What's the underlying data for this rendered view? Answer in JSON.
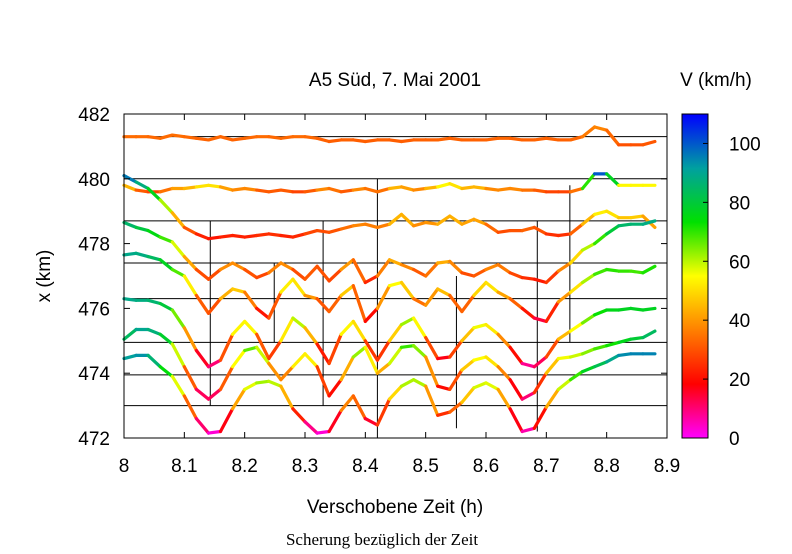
{
  "chart_data": {
    "type": "line",
    "title": "A5 Süd, 7. Mai 2001",
    "xlabel": "Verschobene Zeit (h)",
    "ylabel": "x (km)",
    "caption": "Scherung bezüglich der Zeit",
    "xlim": [
      8,
      8.9
    ],
    "ylim": [
      472,
      482
    ],
    "xticks": [
      "8",
      "8.1",
      "8.2",
      "8.3",
      "8.4",
      "8.5",
      "8.6",
      "8.7",
      "8.8",
      "8.9"
    ],
    "yticks": [
      "472",
      "474",
      "476",
      "478",
      "480",
      "482"
    ],
    "colorbar": {
      "label": "V (km/h)",
      "ticks": [
        "0",
        "20",
        "40",
        "60",
        "80",
        "100"
      ],
      "range": [
        0,
        110
      ],
      "colors": [
        "#ff00ff",
        "#ff0000",
        "#ff8000",
        "#ffff00",
        "#00e000",
        "#00a0a0",
        "#0000ff"
      ]
    },
    "detector_positions_km": [
      481.3,
      480.0,
      478.7,
      477.4,
      476.3,
      474.95,
      473.95,
      473.0
    ],
    "trough_times_h": [
      8.143,
      8.249,
      8.33,
      8.42,
      8.551,
      8.685,
      8.739
    ],
    "series": [
      {
        "base": 481.3,
        "vmax": 38,
        "vmin": 30,
        "x": [
          8.0,
          8.02,
          8.04,
          8.06,
          8.08,
          8.1,
          8.12,
          8.14,
          8.16,
          8.18,
          8.2,
          8.22,
          8.24,
          8.26,
          8.28,
          8.3,
          8.32,
          8.34,
          8.36,
          8.38,
          8.4,
          8.42,
          8.44,
          8.46,
          8.48,
          8.5,
          8.52,
          8.54,
          8.56,
          8.58,
          8.6,
          8.62,
          8.64,
          8.66,
          8.68,
          8.7,
          8.72,
          8.74,
          8.76,
          8.78,
          8.8,
          8.82,
          8.84,
          8.86,
          8.88
        ],
        "y": [
          481.3,
          481.3,
          481.3,
          481.25,
          481.35,
          481.3,
          481.25,
          481.2,
          481.3,
          481.2,
          481.25,
          481.3,
          481.3,
          481.25,
          481.3,
          481.3,
          481.25,
          481.15,
          481.2,
          481.2,
          481.15,
          481.2,
          481.2,
          481.15,
          481.2,
          481.2,
          481.2,
          481.25,
          481.2,
          481.2,
          481.2,
          481.25,
          481.25,
          481.2,
          481.2,
          481.25,
          481.2,
          481.2,
          481.3,
          481.6,
          481.5,
          481.05,
          481.05,
          481.05,
          481.15
        ]
      },
      {
        "base": 480.0,
        "vmax": 100,
        "vmin": 28,
        "x": [
          8.0,
          8.02,
          8.04,
          8.06,
          8.08,
          8.1,
          8.12,
          8.14,
          8.16,
          8.18,
          8.2,
          8.22,
          8.24,
          8.26,
          8.28,
          8.3,
          8.32,
          8.34,
          8.36,
          8.38,
          8.4,
          8.42,
          8.44,
          8.46,
          8.48,
          8.5,
          8.52,
          8.54,
          8.56,
          8.58,
          8.6,
          8.62,
          8.64,
          8.66,
          8.68,
          8.7,
          8.72,
          8.74,
          8.76,
          8.78,
          8.8,
          8.82,
          8.84,
          8.86,
          8.88
        ],
        "y": [
          479.8,
          479.65,
          479.6,
          479.6,
          479.7,
          479.7,
          479.75,
          479.8,
          479.75,
          479.65,
          479.7,
          479.65,
          479.6,
          479.65,
          479.6,
          479.6,
          479.65,
          479.7,
          479.6,
          479.65,
          479.7,
          479.6,
          479.7,
          479.75,
          479.65,
          479.7,
          479.75,
          479.85,
          479.7,
          479.75,
          479.7,
          479.65,
          479.7,
          479.65,
          479.65,
          479.6,
          479.6,
          479.6,
          479.7,
          480.15,
          480.15,
          479.8,
          479.8,
          479.8,
          479.8
        ]
      },
      {
        "base": 478.7,
        "vmax": 100,
        "vmin": 20,
        "x": [
          8.0,
          8.02,
          8.04,
          8.06,
          8.08,
          8.1,
          8.12,
          8.14,
          8.16,
          8.18,
          8.2,
          8.22,
          8.24,
          8.26,
          8.28,
          8.3,
          8.32,
          8.34,
          8.36,
          8.38,
          8.4,
          8.42,
          8.44,
          8.46,
          8.48,
          8.5,
          8.52,
          8.54,
          8.56,
          8.58,
          8.6,
          8.62,
          8.64,
          8.66,
          8.68,
          8.7,
          8.72,
          8.74,
          8.76,
          8.78,
          8.8,
          8.82,
          8.84,
          8.86,
          8.88
        ],
        "y": [
          480.1,
          479.9,
          479.7,
          479.35,
          478.95,
          478.5,
          478.3,
          478.15,
          478.2,
          478.25,
          478.2,
          478.25,
          478.3,
          478.25,
          478.2,
          478.3,
          478.4,
          478.35,
          478.45,
          478.55,
          478.6,
          478.5,
          478.6,
          478.9,
          478.55,
          478.65,
          478.6,
          478.85,
          478.6,
          478.75,
          478.6,
          478.35,
          478.4,
          478.4,
          478.5,
          478.3,
          478.25,
          478.3,
          478.6,
          478.9,
          479.0,
          478.8,
          478.8,
          478.85,
          478.5
        ]
      },
      {
        "base": 477.4,
        "vmax": 90,
        "vmin": 20,
        "x": [
          8.0,
          8.02,
          8.04,
          8.06,
          8.08,
          8.1,
          8.12,
          8.14,
          8.16,
          8.18,
          8.2,
          8.22,
          8.24,
          8.26,
          8.28,
          8.3,
          8.32,
          8.34,
          8.36,
          8.38,
          8.4,
          8.42,
          8.44,
          8.46,
          8.48,
          8.5,
          8.52,
          8.54,
          8.56,
          8.58,
          8.6,
          8.62,
          8.64,
          8.66,
          8.68,
          8.7,
          8.72,
          8.74,
          8.76,
          8.78,
          8.8,
          8.82,
          8.84,
          8.86,
          8.88
        ],
        "y": [
          478.65,
          478.5,
          478.4,
          478.2,
          478.05,
          477.6,
          477.2,
          476.9,
          477.2,
          477.4,
          477.2,
          476.95,
          477.1,
          477.4,
          477.2,
          476.9,
          477.3,
          476.85,
          477.2,
          477.5,
          476.8,
          477.0,
          477.5,
          477.35,
          477.2,
          477.0,
          477.4,
          477.45,
          477.1,
          477.0,
          477.2,
          477.35,
          477.1,
          476.95,
          476.9,
          476.8,
          477.15,
          477.4,
          477.8,
          478.0,
          478.3,
          478.55,
          478.6,
          478.6,
          478.7
        ]
      },
      {
        "base": 476.3,
        "vmax": 90,
        "vmin": 12,
        "x": [
          8.0,
          8.02,
          8.04,
          8.06,
          8.08,
          8.1,
          8.12,
          8.14,
          8.16,
          8.18,
          8.2,
          8.22,
          8.24,
          8.26,
          8.28,
          8.3,
          8.32,
          8.34,
          8.36,
          8.38,
          8.4,
          8.42,
          8.44,
          8.46,
          8.48,
          8.5,
          8.52,
          8.54,
          8.56,
          8.58,
          8.6,
          8.62,
          8.64,
          8.66,
          8.68,
          8.7,
          8.72,
          8.74,
          8.76,
          8.78,
          8.8,
          8.82,
          8.84,
          8.86,
          8.88
        ],
        "y": [
          477.65,
          477.7,
          477.6,
          477.5,
          477.2,
          477.0,
          476.4,
          475.85,
          476.3,
          476.6,
          476.5,
          476.0,
          475.7,
          476.5,
          476.9,
          476.4,
          476.3,
          475.9,
          476.4,
          476.7,
          475.6,
          476.0,
          476.7,
          476.8,
          476.3,
          476.1,
          476.6,
          476.4,
          475.9,
          476.4,
          476.8,
          476.5,
          476.3,
          476.0,
          475.7,
          475.6,
          476.2,
          476.5,
          476.8,
          477.05,
          477.2,
          477.15,
          477.15,
          477.1,
          477.3
        ]
      },
      {
        "base": 474.95,
        "vmax": 90,
        "vmin": 6,
        "x": [
          8.0,
          8.02,
          8.04,
          8.06,
          8.08,
          8.1,
          8.12,
          8.14,
          8.16,
          8.18,
          8.2,
          8.22,
          8.24,
          8.26,
          8.28,
          8.3,
          8.32,
          8.34,
          8.36,
          8.38,
          8.4,
          8.42,
          8.44,
          8.46,
          8.48,
          8.5,
          8.52,
          8.54,
          8.56,
          8.58,
          8.6,
          8.62,
          8.64,
          8.66,
          8.68,
          8.7,
          8.72,
          8.74,
          8.76,
          8.78,
          8.8,
          8.82,
          8.84,
          8.86,
          8.88
        ],
        "y": [
          476.3,
          476.25,
          476.25,
          476.15,
          475.95,
          475.4,
          474.7,
          474.2,
          474.4,
          475.2,
          475.6,
          475.2,
          474.45,
          475.0,
          475.7,
          475.4,
          474.9,
          474.3,
          475.2,
          475.6,
          475.0,
          474.4,
          475.0,
          475.5,
          475.7,
          475.1,
          474.45,
          474.5,
          475.0,
          475.4,
          475.5,
          475.2,
          474.8,
          474.3,
          474.2,
          474.5,
          475.05,
          475.3,
          475.55,
          475.8,
          475.95,
          475.95,
          476.0,
          475.95,
          476.0
        ]
      },
      {
        "base": 473.95,
        "vmax": 90,
        "vmin": 6,
        "x": [
          8.0,
          8.02,
          8.04,
          8.06,
          8.08,
          8.1,
          8.12,
          8.14,
          8.16,
          8.18,
          8.2,
          8.22,
          8.24,
          8.26,
          8.28,
          8.3,
          8.32,
          8.34,
          8.36,
          8.38,
          8.4,
          8.42,
          8.44,
          8.46,
          8.48,
          8.5,
          8.52,
          8.54,
          8.56,
          8.58,
          8.6,
          8.62,
          8.64,
          8.66,
          8.68,
          8.7,
          8.72,
          8.74,
          8.76,
          8.78,
          8.8,
          8.82,
          8.84,
          8.86,
          8.88
        ],
        "y": [
          475.05,
          475.35,
          475.35,
          475.2,
          474.9,
          474.2,
          473.5,
          473.2,
          473.5,
          474.2,
          474.7,
          474.8,
          474.3,
          473.8,
          474.2,
          474.6,
          474.2,
          473.3,
          473.8,
          474.5,
          474.8,
          474.0,
          474.3,
          474.8,
          474.85,
          474.5,
          473.6,
          473.5,
          474.1,
          474.4,
          474.5,
          474.2,
          473.8,
          473.2,
          473.4,
          474.0,
          474.45,
          474.5,
          474.6,
          474.75,
          474.85,
          474.95,
          475.05,
          475.1,
          475.3
        ]
      },
      {
        "base": 473.0,
        "vmax": 95,
        "vmin": 2,
        "x": [
          8.0,
          8.02,
          8.04,
          8.06,
          8.08,
          8.1,
          8.12,
          8.14,
          8.16,
          8.18,
          8.2,
          8.22,
          8.24,
          8.26,
          8.28,
          8.3,
          8.32,
          8.34,
          8.36,
          8.38,
          8.4,
          8.42,
          8.44,
          8.46,
          8.48,
          8.5,
          8.52,
          8.54,
          8.56,
          8.58,
          8.6,
          8.62,
          8.64,
          8.66,
          8.68,
          8.7,
          8.72,
          8.74,
          8.76,
          8.78,
          8.8,
          8.82,
          8.84,
          8.86,
          8.88
        ],
        "y": [
          474.45,
          474.55,
          474.55,
          474.2,
          473.9,
          473.3,
          472.6,
          472.15,
          472.2,
          472.9,
          473.5,
          473.7,
          473.75,
          473.6,
          472.9,
          472.5,
          472.15,
          472.2,
          472.85,
          473.3,
          472.6,
          472.4,
          473.2,
          473.6,
          473.8,
          473.6,
          472.7,
          472.8,
          473.1,
          473.55,
          473.7,
          473.5,
          472.9,
          472.2,
          472.3,
          472.95,
          473.5,
          473.8,
          474.05,
          474.2,
          474.35,
          474.55,
          474.6,
          474.6,
          474.6
        ]
      }
    ]
  }
}
